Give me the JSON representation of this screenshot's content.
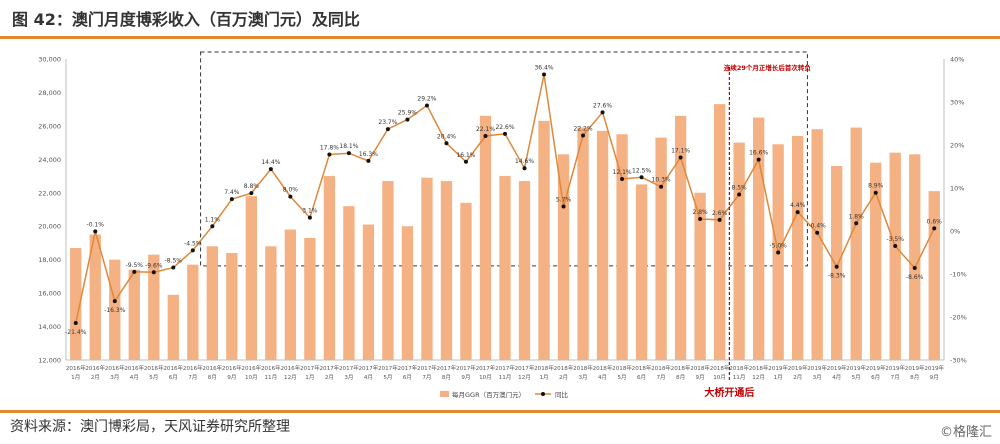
{
  "title": "图 42：澳门月度博彩收入（百万澳门元）及同比",
  "source": "资料来源：澳门博彩局，天风证券研究所整理",
  "watermark": "©格隆汇",
  "colors": {
    "bar": "#f4b183",
    "line": "#e0883a",
    "point": "#111111",
    "accent": "#e08a2e",
    "annotation": "#c00000"
  },
  "chart_data": {
    "type": "bar",
    "categories": [
      "2016年1月",
      "2016年2月",
      "2016年3月",
      "2016年4月",
      "2016年5月",
      "2016年6月",
      "2016年7月",
      "2016年8月",
      "2016年9月",
      "2016年10月",
      "2016年11月",
      "2016年12月",
      "2017年1月",
      "2017年2月",
      "2017年3月",
      "2017年4月",
      "2017年5月",
      "2017年6月",
      "2017年7月",
      "2017年8月",
      "2017年9月",
      "2017年10月",
      "2017年11月",
      "2017年12月",
      "2018年1月",
      "2018年2月",
      "2018年3月",
      "2018年4月",
      "2018年5月",
      "2018年6月",
      "2018年7月",
      "2018年8月",
      "2018年9月",
      "2018年10月",
      "2018年11月",
      "2018年12月",
      "2019年1月",
      "2019年2月",
      "2019年3月",
      "2019年4月",
      "2019年5月",
      "2019年6月",
      "2019年7月",
      "2019年8月",
      "2019年9月"
    ],
    "years": [
      "2016年",
      "2016年",
      "2016年",
      "2016年",
      "2016年",
      "2016年",
      "2016年",
      "2016年",
      "2016年",
      "2016年",
      "2016年",
      "2016年",
      "2017年",
      "2017年",
      "2017年",
      "2017年",
      "2017年",
      "2017年",
      "2017年",
      "2017年",
      "2017年",
      "2017年",
      "2017年",
      "2017年",
      "2018年",
      "2018年",
      "2018年",
      "2018年",
      "2018年",
      "2018年",
      "2018年",
      "2018年",
      "2018年",
      "2018年",
      "2018年",
      "2018年",
      "2019年",
      "2019年",
      "2019年",
      "2019年",
      "2019年",
      "2019年",
      "2019年",
      "2019年",
      "2019年"
    ],
    "months": [
      "1月",
      "2月",
      "3月",
      "4月",
      "5月",
      "6月",
      "7月",
      "8月",
      "9月",
      "10月",
      "11月",
      "12月",
      "1月",
      "2月",
      "3月",
      "4月",
      "5月",
      "6月",
      "7月",
      "8月",
      "9月",
      "10月",
      "11月",
      "12月",
      "1月",
      "2月",
      "3月",
      "4月",
      "5月",
      "6月",
      "7月",
      "8月",
      "9月",
      "10月",
      "11月",
      "12月",
      "1月",
      "2月",
      "3月",
      "4月",
      "5月",
      "6月",
      "7月",
      "8月",
      "9月"
    ],
    "series": [
      {
        "name": "每月GGR（百万澳门元）",
        "axis": "left",
        "values": [
          18700,
          19500,
          18000,
          17400,
          18300,
          15900,
          17700,
          18800,
          18400,
          21800,
          18800,
          19800,
          19300,
          23000,
          21200,
          20100,
          22700,
          20000,
          22900,
          22700,
          21400,
          26600,
          23000,
          22700,
          26300,
          24300,
          25900,
          25700,
          25500,
          22500,
          25300,
          26600,
          22000,
          27300,
          25000,
          26500,
          24900,
          25400,
          25800,
          23600,
          25900,
          23800,
          24400,
          24300,
          22100
        ]
      },
      {
        "name": "同比",
        "axis": "right",
        "values": [
          -21.4,
          -0.1,
          -16.3,
          -9.5,
          -9.6,
          -8.5,
          -4.5,
          1.1,
          7.4,
          8.8,
          14.4,
          8.0,
          3.1,
          17.8,
          18.1,
          16.3,
          23.7,
          25.9,
          29.2,
          20.4,
          16.1,
          22.1,
          22.6,
          14.6,
          36.4,
          5.7,
          22.2,
          27.6,
          12.1,
          12.5,
          10.3,
          17.1,
          2.8,
          2.6,
          8.5,
          16.6,
          -5.0,
          4.4,
          -0.4,
          -8.3,
          1.8,
          8.9,
          -3.5,
          -8.6,
          0.6
        ],
        "labels": [
          "-21.4%",
          "-0.1%",
          "-16.3%",
          "-9.5%",
          "-9.6%",
          "-8.5%",
          "-4.5%",
          "1.1%",
          "7.4%",
          "8.8%",
          "14.4%",
          "8.0%",
          "3.1%",
          "17.8%",
          "18.1%",
          "16.3%",
          "23.7%",
          "25.9%",
          "29.2%",
          "20.4%",
          "16.1%",
          "22.1%",
          "22.6%",
          "14.6%",
          "36.4%",
          "5.7%",
          "22.2%",
          "27.6%",
          "12.1%",
          "12.5%",
          "10.3%",
          "17.1%",
          "2.8%",
          "2.6%",
          "8.5%",
          "16.6%",
          "-5.0%",
          "4.4%",
          "-0.4%",
          "-8.3%",
          "1.8%",
          "8.9%",
          "-3.5%",
          "-8.6%",
          "0.6%"
        ]
      }
    ],
    "y_left": {
      "min": 12000,
      "max": 30000,
      "step": 2000,
      "ticks": [
        "12,000",
        "14,000",
        "16,000",
        "18,000",
        "20,000",
        "22,000",
        "24,000",
        "26,000",
        "28,000",
        "30,000"
      ]
    },
    "y_right": {
      "min": -30,
      "max": 40,
      "step": 10,
      "ticks": [
        "-30%",
        "-20%",
        "-10%",
        "0%",
        "10%",
        "20%",
        "30%",
        "40%"
      ]
    },
    "legend": {
      "position": "bottom"
    },
    "annotations": [
      {
        "text": "连续29个月正增长后首次转负"
      },
      {
        "text": "大桥开通后"
      }
    ],
    "grid": false
  }
}
